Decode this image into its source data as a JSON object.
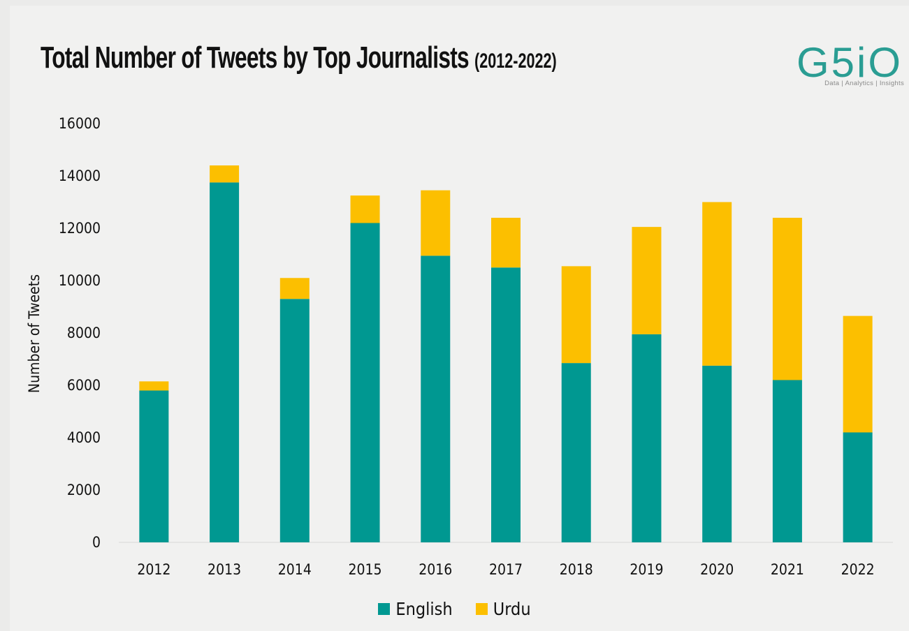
{
  "header": {
    "title": "Total Number of Tweets by Top Journalists",
    "title_range": "(2012-2022)"
  },
  "logo": {
    "text": "G5iO",
    "tagline": "Data | Analytics | Insights",
    "color": "#2a9d93"
  },
  "colors": {
    "english": "#009891",
    "urdu": "#fcbf00"
  },
  "chart_data": {
    "type": "bar",
    "stacked": true,
    "title": "Total Number of Tweets by Top Journalists (2012-2022)",
    "xlabel": "",
    "ylabel": "Number of Tweets",
    "ylim": [
      0,
      16000
    ],
    "yticks": [
      0,
      2000,
      4000,
      6000,
      8000,
      10000,
      12000,
      14000,
      16000
    ],
    "categories": [
      "2012",
      "2013",
      "2014",
      "2015",
      "2016",
      "2017",
      "2018",
      "2019",
      "2020",
      "2021",
      "2022"
    ],
    "series": [
      {
        "name": "English",
        "color": "#009891",
        "values": [
          5800,
          13750,
          9300,
          12200,
          10950,
          10500,
          6850,
          7950,
          6750,
          6200,
          4200
        ]
      },
      {
        "name": "Urdu",
        "color": "#fcbf00",
        "values": [
          350,
          650,
          800,
          1050,
          2500,
          1900,
          3700,
          4100,
          6250,
          6200,
          4450
        ]
      }
    ],
    "grid": false,
    "legend_position": "bottom"
  }
}
